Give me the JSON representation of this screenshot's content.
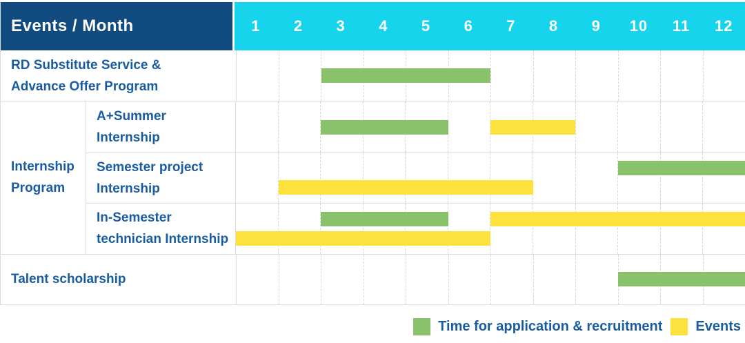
{
  "colors": {
    "navy": "#124B7F",
    "cyan": "#16D4EC",
    "green": "#8AC26B",
    "yellow": "#FDE23E",
    "blue": "#1A5CA0",
    "grid": "#DCDCDC"
  },
  "header": {
    "label": "Events / Month",
    "months": [
      "1",
      "2",
      "3",
      "4",
      "5",
      "6",
      "7",
      "8",
      "9",
      "10",
      "11",
      "12"
    ]
  },
  "legend": {
    "items": [
      {
        "color": "green",
        "label": "Time for application & recruitment"
      },
      {
        "color": "yellow",
        "label": "Events"
      }
    ]
  },
  "chart_data": {
    "type": "gantt",
    "x_unit": "month",
    "x_range": [
      1,
      12
    ],
    "bar_meanings": {
      "green": "Time for application & recruitment",
      "yellow": "Events"
    },
    "group": {
      "label": "Internship Program",
      "label_lines": [
        "Internship",
        "Program"
      ],
      "row_indexes": [
        1,
        2,
        3
      ]
    },
    "rows": [
      {
        "label": "RD Substitute Service & Advance Offer Program",
        "label_lines": [
          "RD Substitute Service &",
          "Advance Offer Program"
        ],
        "bars": [
          [
            {
              "color": "green",
              "start": 3,
              "end": 6
            }
          ]
        ]
      },
      {
        "label": "A+Summer Internship",
        "label_lines": [
          "A+Summer",
          "Internship"
        ],
        "bars": [
          [
            {
              "color": "green",
              "start": 3,
              "end": 5
            },
            {
              "color": "yellow",
              "start": 7,
              "end": 8
            }
          ]
        ]
      },
      {
        "label": "Semester project Internship",
        "label_lines": [
          "Semester project",
          "Internship"
        ],
        "bars": [
          [
            {
              "color": "green",
              "start": 10,
              "end": 12
            }
          ],
          [
            {
              "color": "yellow",
              "start": 2,
              "end": 7
            }
          ]
        ]
      },
      {
        "label": "In-Semester technician Internship",
        "label_lines": [
          "In-Semester",
          "technician Internship"
        ],
        "bars": [
          [
            {
              "color": "green",
              "start": 3,
              "end": 5
            },
            {
              "color": "yellow",
              "start": 7,
              "end": 12
            }
          ],
          [
            {
              "color": "yellow",
              "start": 1,
              "end": 6
            }
          ]
        ]
      },
      {
        "label": "Talent scholarship",
        "label_lines": [
          "Talent scholarship"
        ],
        "bars": [
          [
            {
              "color": "green",
              "start": 10,
              "end": 12
            }
          ]
        ]
      }
    ]
  }
}
